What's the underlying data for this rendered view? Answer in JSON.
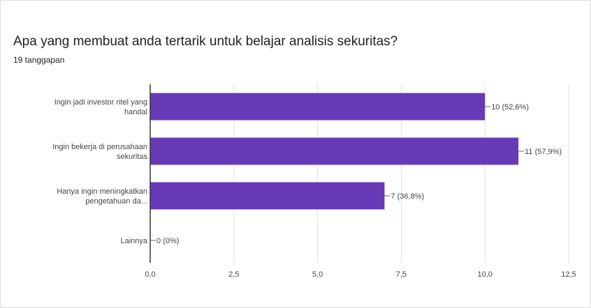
{
  "question": {
    "title": "Apa yang membuat anda tertarik untuk belajar analisis sekuritas?",
    "responses": "19 tanggapan"
  },
  "chart_data": {
    "type": "bar",
    "orientation": "horizontal",
    "categories": [
      [
        "Ingin jadi investor ritel yang",
        "handal"
      ],
      [
        "Ingin bekerja di perusahaan",
        "sekuritas"
      ],
      [
        "Hanya ingin meningkatkan",
        "pengetahuan da..."
      ],
      [
        "Lainnya"
      ]
    ],
    "values": [
      10,
      11,
      7,
      0
    ],
    "data_labels": [
      "10 (52,6%)",
      "11 (57,9%)",
      "7 (36,8%)",
      "0 (0%)"
    ],
    "x_ticks": [
      0,
      2.5,
      5,
      7.5,
      10,
      12.5
    ],
    "x_tick_labels": [
      "0,0",
      "2,5",
      "5,0",
      "7,5",
      "10,0",
      "12,5"
    ],
    "xlim": [
      0,
      12.5
    ],
    "grid": true,
    "bar_color": "#673ab7"
  }
}
